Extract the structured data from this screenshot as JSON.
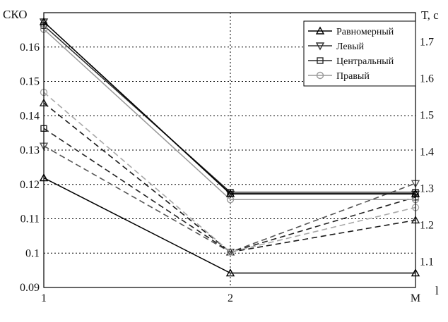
{
  "chart_data": {
    "type": "line",
    "title": "",
    "ylabel_left": "СКО",
    "ylabel_right": "Т, с",
    "xlabel": "l",
    "categories": [
      "1",
      "2",
      "M"
    ],
    "ylim_left": [
      0.09,
      0.17
    ],
    "yticks_left": [
      "0.09",
      "0.1",
      "0.11",
      "0.12",
      "0.13",
      "0.14",
      "0.15",
      "0.16"
    ],
    "ylim_right": [
      1.03,
      1.78
    ],
    "yticks_right": [
      "1.1",
      "1.2",
      "1.3",
      "1.4",
      "1.5",
      "1.6",
      "1.7"
    ],
    "grid": true,
    "legend_position": "top-right",
    "series": [
      {
        "name": "Равномерный",
        "marker": "triangle-up",
        "solid_color": "#000000",
        "dashed_color": "#1a1a1a",
        "time_values": [
          1.755,
          1.286,
          1.286
        ],
        "sko_values": [
          0.1219,
          0.0942,
          0.0942
        ],
        "dashed_values": [
          0.1437,
          0.1003,
          0.1096
        ]
      },
      {
        "name": "Левый",
        "marker": "triangle-down",
        "solid_color": "#333333",
        "dashed_color": "#555555",
        "time_values": [
          1.755,
          1.285,
          1.285
        ],
        "sko_values": [
          0.1312,
          0.1003,
          0.1203
        ],
        "dashed_values": [
          0.1312,
          0.1003,
          0.1203
        ]
      },
      {
        "name": "Центральный",
        "marker": "square",
        "solid_color": "#2a2a2a",
        "dashed_color": "#222222",
        "time_values": [
          1.745,
          1.29,
          1.29
        ],
        "sko_values": [
          0.1363,
          0.1003,
          0.1163
        ],
        "dashed_values": [
          0.1363,
          0.1003,
          0.1163
        ]
      },
      {
        "name": "Правый",
        "marker": "circle",
        "solid_color": "#999999",
        "dashed_color": "#a8a8a8",
        "time_values": [
          1.735,
          1.27,
          1.27
        ],
        "sko_values": [
          0.1468,
          0.1003,
          0.1133
        ],
        "dashed_values": [
          0.1468,
          0.1003,
          0.1133
        ]
      }
    ]
  }
}
